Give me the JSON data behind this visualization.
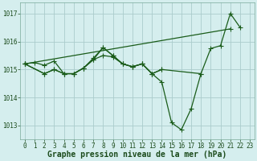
{
  "title": "Graphe pression niveau de la mer (hPa)",
  "bg_color": "#d5eeee",
  "grid_color": "#aacccc",
  "line_color": "#1a5c1a",
  "text_color": "#1a4a1a",
  "title_fontsize": 7,
  "tick_fontsize": 5.5,
  "ylim": [
    1012.5,
    1017.4
  ],
  "yticks": [
    1013,
    1014,
    1015,
    1016,
    1017
  ],
  "xlim": [
    -0.5,
    23.5
  ],
  "xticks": [
    0,
    1,
    2,
    3,
    4,
    5,
    6,
    7,
    8,
    9,
    10,
    11,
    12,
    13,
    14,
    15,
    16,
    17,
    18,
    19,
    20,
    21,
    22,
    23
  ],
  "line1_x": [
    0,
    1,
    2,
    3,
    4,
    5,
    6,
    7,
    8,
    9,
    10,
    11,
    12,
    13,
    14,
    15,
    16,
    17,
    18,
    19,
    20,
    21,
    22
  ],
  "line1_y": [
    1015.2,
    1015.25,
    1015.15,
    1015.3,
    1014.85,
    1014.85,
    1015.05,
    1015.35,
    1015.78,
    1015.5,
    1015.2,
    1015.1,
    1015.2,
    1014.85,
    1014.55,
    1013.1,
    1012.85,
    1013.6,
    1014.85,
    1015.75,
    1015.85,
    1017.0,
    1016.5
  ],
  "line2_x": [
    0,
    2,
    3,
    4,
    5,
    6,
    7,
    8,
    9,
    10,
    11,
    12,
    13,
    14,
    18
  ],
  "line2_y": [
    1015.2,
    1014.85,
    1015.0,
    1014.85,
    1014.85,
    1015.05,
    1015.4,
    1015.78,
    1015.5,
    1015.2,
    1015.1,
    1015.2,
    1014.85,
    1015.0,
    1014.85
  ],
  "line3_x": [
    0,
    21
  ],
  "line3_y": [
    1015.2,
    1016.45
  ],
  "line4_x": [
    0,
    2,
    3,
    4,
    5,
    6,
    7,
    8,
    9,
    10,
    11,
    12,
    13,
    14
  ],
  "line4_y": [
    1015.2,
    1014.85,
    1015.0,
    1014.85,
    1014.85,
    1015.05,
    1015.35,
    1015.5,
    1015.45,
    1015.2,
    1015.1,
    1015.2,
    1014.85,
    1015.0
  ]
}
